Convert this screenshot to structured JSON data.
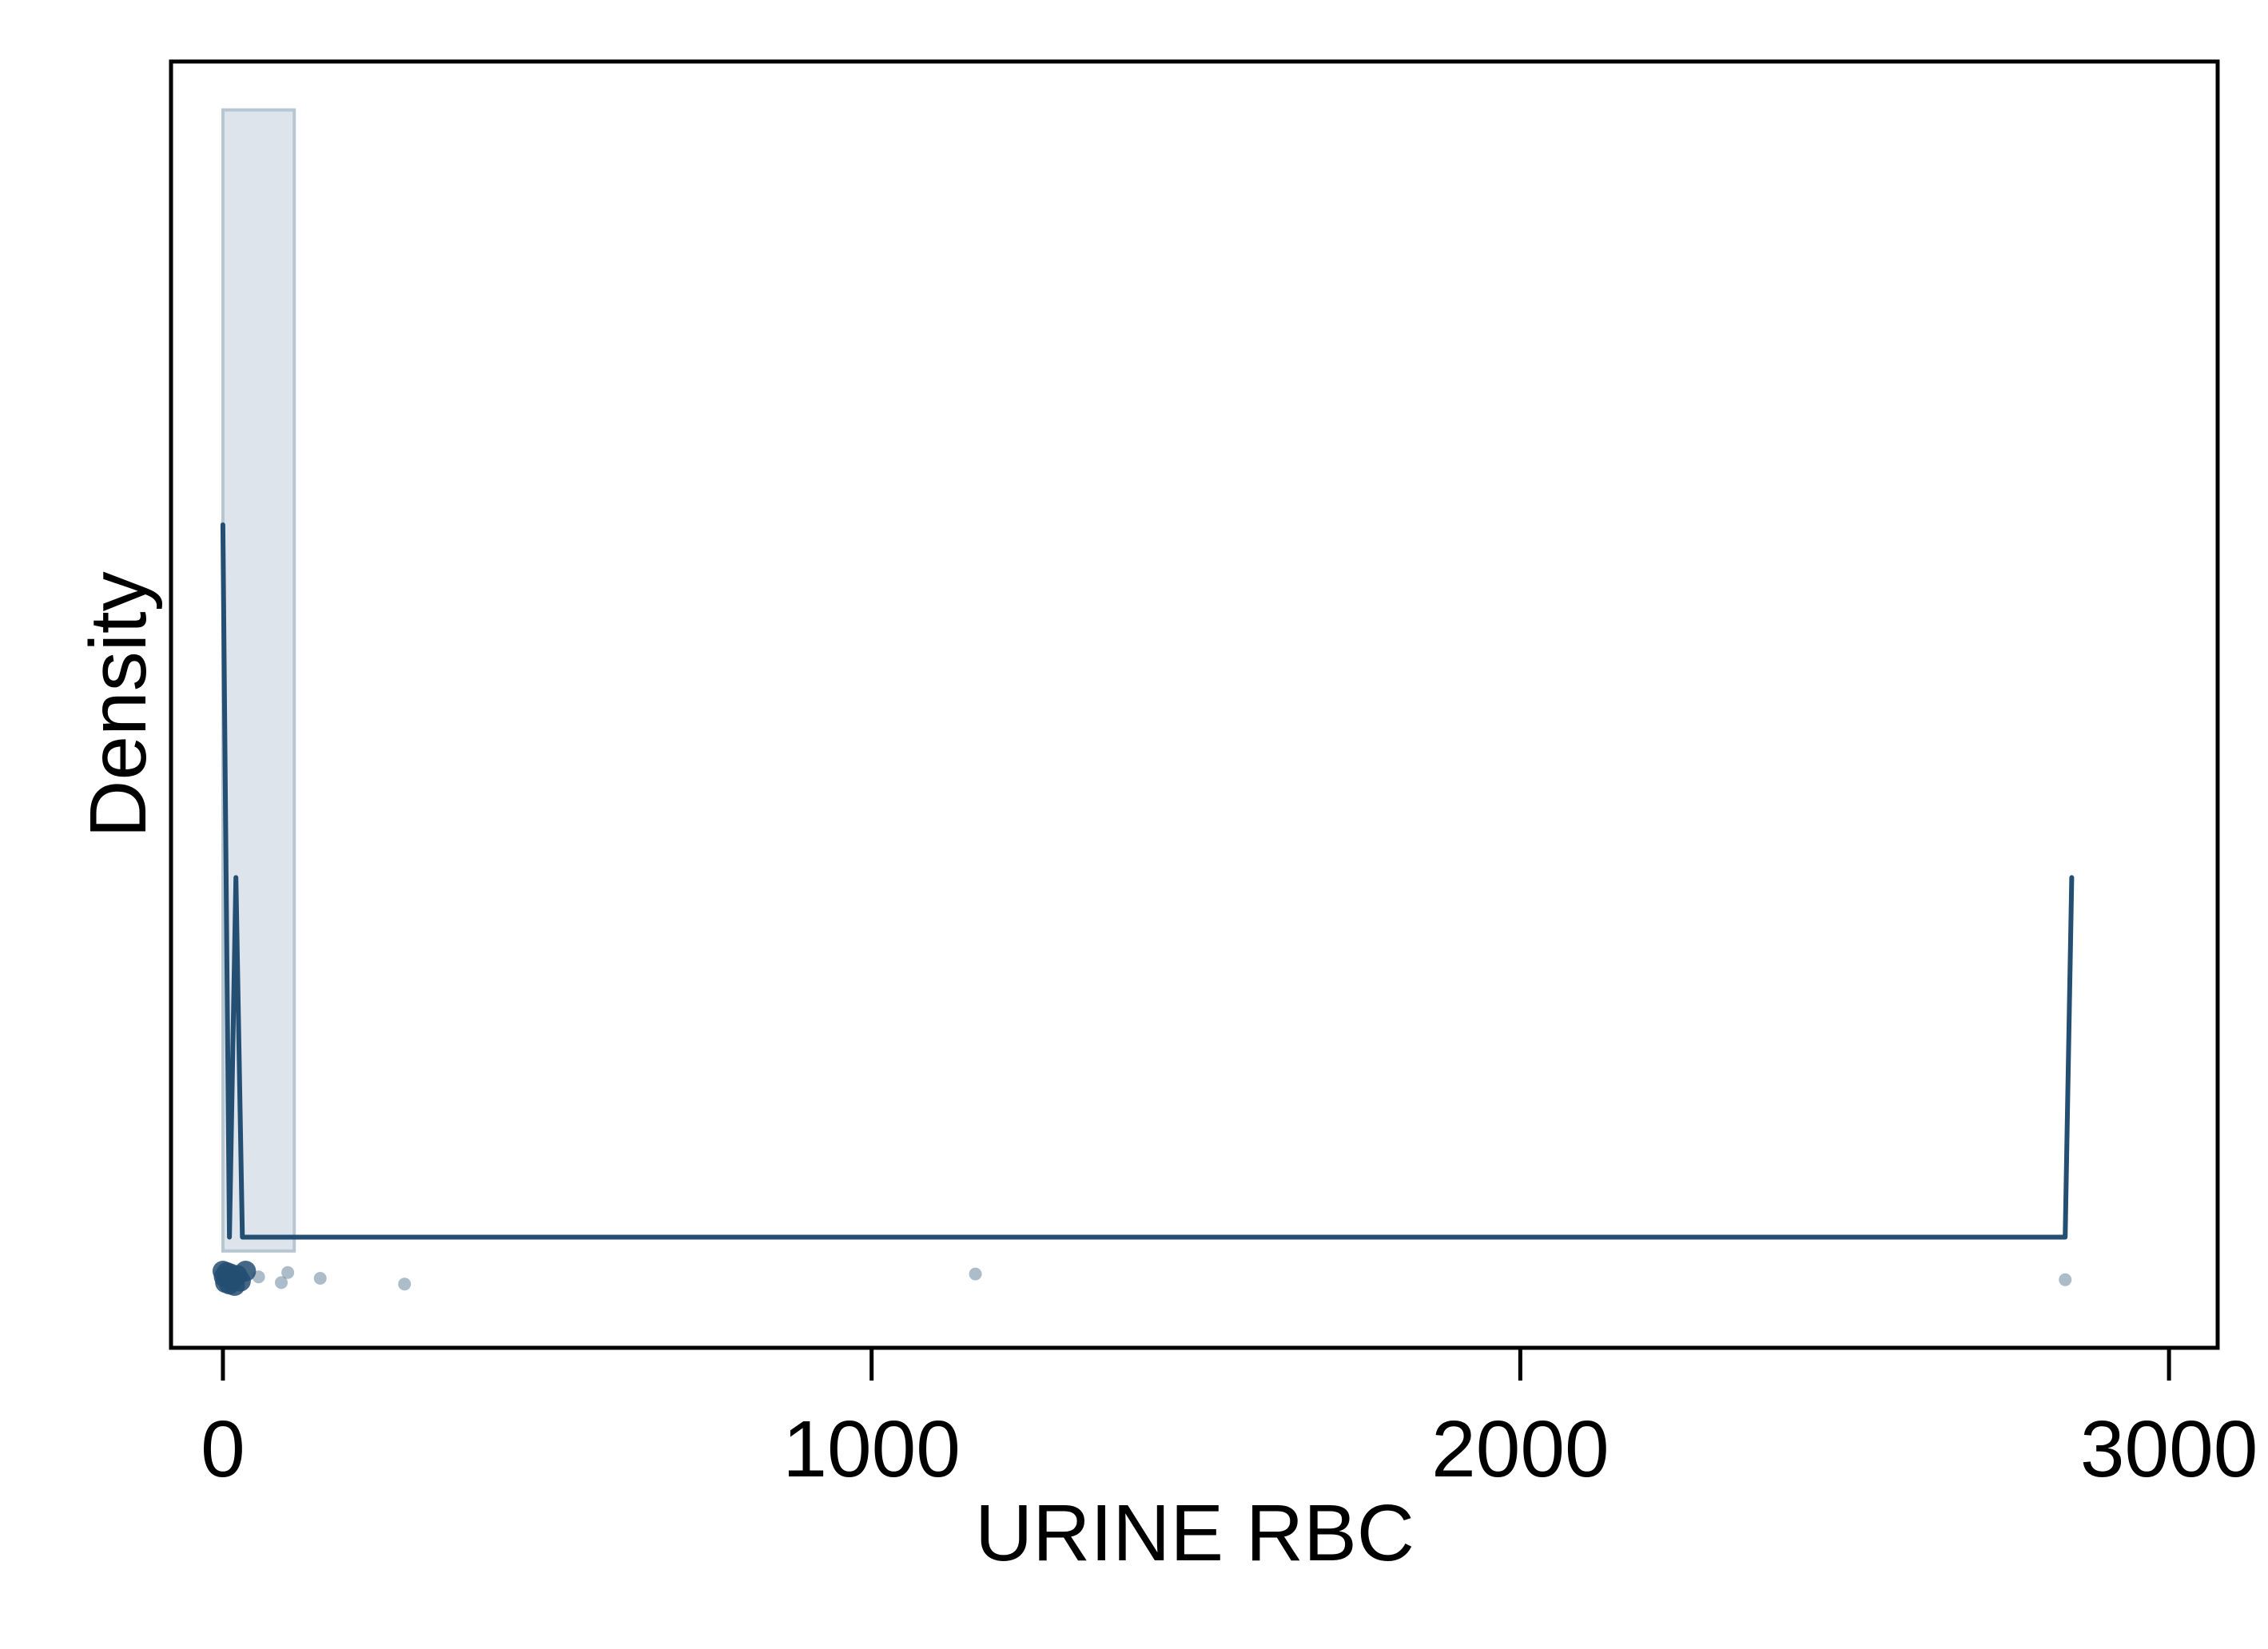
{
  "chart_data": {
    "type": "histogram",
    "title": "",
    "xlabel": "URINE RBC",
    "ylabel": "Density",
    "xlim": [
      -80,
      3075
    ],
    "ylim": [
      -0.16,
      1.7
    ],
    "x_ticks": [
      0,
      1000,
      2000,
      3000
    ],
    "x_tick_labels": [
      "0",
      "1000",
      "2000",
      "3000"
    ],
    "y_ticks_shown": false,
    "grid": false,
    "legend": "none",
    "colors": {
      "bar_fill": "#dde4ec",
      "bar_edge": "#b8c6d2",
      "line": "#244e72",
      "rug": "#244e72"
    },
    "histogram_bars": [
      {
        "x0": 0,
        "x1": 110,
        "density": 1.63
      }
    ],
    "density_line": {
      "x": [
        0,
        10,
        20,
        30,
        40,
        60,
        2800,
        2840,
        2850
      ],
      "y": [
        1.03,
        0.0,
        0.52,
        0.0,
        0.0,
        0.0,
        0.0,
        0.0,
        0.52
      ]
    },
    "rug_points": [
      {
        "x": 0,
        "dense": true
      },
      {
        "x": 2,
        "dense": true
      },
      {
        "x": 4,
        "dense": true
      },
      {
        "x": 6,
        "dense": true
      },
      {
        "x": 8,
        "dense": true
      },
      {
        "x": 10,
        "dense": true
      },
      {
        "x": 12,
        "dense": true
      },
      {
        "x": 15,
        "dense": true
      },
      {
        "x": 18,
        "dense": true
      },
      {
        "x": 22,
        "dense": true
      },
      {
        "x": 27,
        "dense": true
      },
      {
        "x": 35,
        "dense": true
      },
      {
        "x": 55,
        "dense": false
      },
      {
        "x": 90,
        "dense": false
      },
      {
        "x": 100,
        "dense": false
      },
      {
        "x": 150,
        "dense": false
      },
      {
        "x": 280,
        "dense": false
      },
      {
        "x": 1160,
        "dense": false
      },
      {
        "x": 2840,
        "dense": false
      }
    ]
  }
}
